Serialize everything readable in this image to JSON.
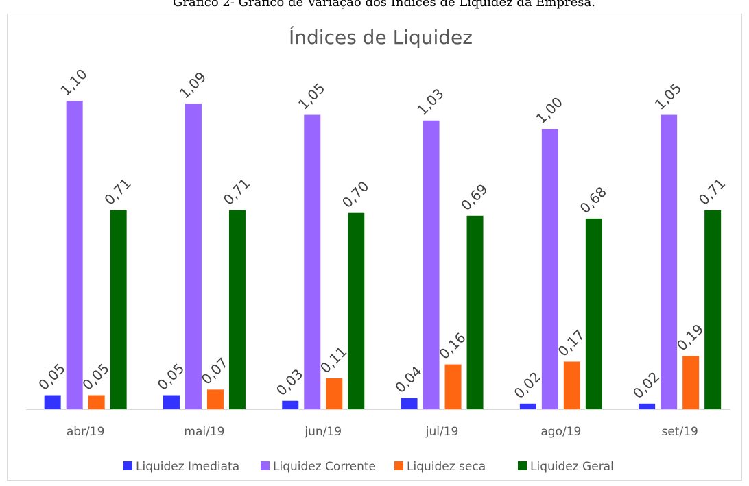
{
  "caption": "Gráfico 2- Gráfico de Variação dos Índices de Liquidez da Empresa.",
  "chart_data": {
    "type": "bar",
    "title": "Índices de Liquidez",
    "categories": [
      "abr/19",
      "mai/19",
      "jun/19",
      "jul/19",
      "ago/19",
      "set/19"
    ],
    "series": [
      {
        "name": "Liquidez Imediata",
        "color": "#3333ff",
        "values": [
          0.05,
          0.05,
          0.03,
          0.04,
          0.02,
          0.02
        ],
        "value_labels": [
          "0,05",
          "0,05",
          "0,03",
          "0,04",
          "0,02",
          "0,02"
        ]
      },
      {
        "name": "Liquidez Corrente",
        "color": "#9966ff",
        "values": [
          1.1,
          1.09,
          1.05,
          1.03,
          1.0,
          1.05
        ],
        "value_labels": [
          "1,10",
          "1,09",
          "1,05",
          "1,03",
          "1,00",
          "1,05"
        ]
      },
      {
        "name": "Liquidez seca",
        "color": "#ff6611",
        "values": [
          0.05,
          0.07,
          0.11,
          0.16,
          0.17,
          0.19
        ],
        "value_labels": [
          "0,05",
          "0,07",
          "0,11",
          "0,16",
          "0,17",
          "0,19"
        ]
      },
      {
        "name": "Liquidez Geral",
        "color": "#006600",
        "values": [
          0.71,
          0.71,
          0.7,
          0.69,
          0.68,
          0.71
        ],
        "value_labels": [
          "0,71",
          "0,71",
          "0,70",
          "0,69",
          "0,68",
          "0,71"
        ]
      }
    ],
    "legend": "bottom"
  }
}
